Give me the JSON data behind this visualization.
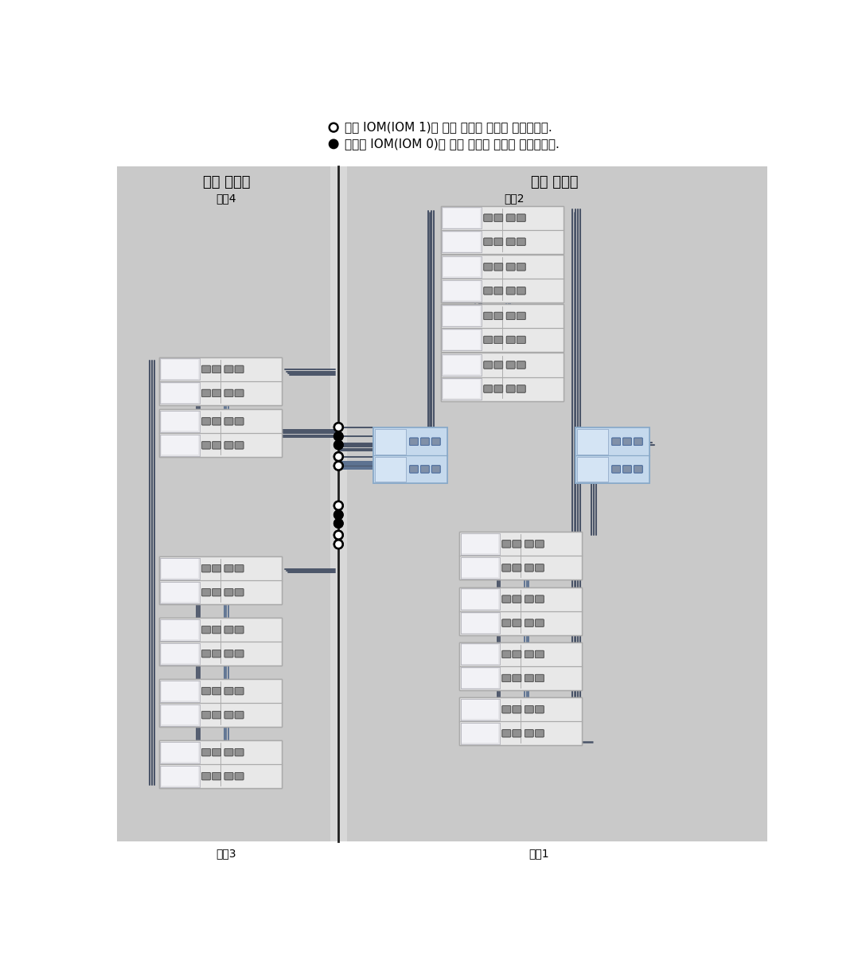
{
  "legend_open_text": "위쪽 IOM(IOM 1)에 대한 케이블 연결을 나타납니다.",
  "legend_filled_text": "아래쪽 IOM(IOM 0)에 대한 케이블 연결을 나타납니다.",
  "left_cabinet_label": "확장 캐비닛",
  "right_cabinet_label": "기본 캐비닛",
  "chain4_label": "체인4",
  "chain3_label": "체인3",
  "chain2_label": "체인2",
  "chain1_label": "체인1",
  "bg_cabinet": "#c9c9c9",
  "bg_white": "#ffffff",
  "shelf_fill": "#e8e8e8",
  "shelf_fill2": "#f0f0f0",
  "shelf_edge": "#aaaaaa",
  "shelf_inner": "#d8d8d8",
  "ctrl_fill": "#c5d9ed",
  "ctrl_fill2": "#dce9f5",
  "ctrl_edge": "#8aaac8",
  "line_dark": "#4a5060",
  "line_blue": "#6080a0",
  "line_mid": "#607080",
  "div_color": "#202020",
  "port_fill": "#909090",
  "port_edge": "#606060"
}
